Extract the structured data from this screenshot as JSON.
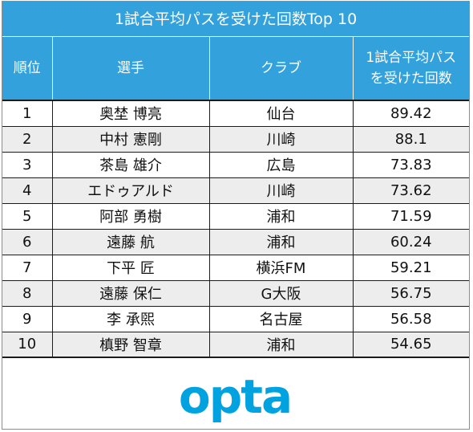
{
  "title": "1試合平均パスを受けた回数Top 10",
  "headers": {
    "rank": "順位",
    "player": "選手",
    "club": "クラブ",
    "value_line1": "1試合平均パス",
    "value_line2": "を受けた回数"
  },
  "rows": [
    {
      "rank": "1",
      "player": "奥埜 博亮",
      "club": "仙台",
      "value": "89.42"
    },
    {
      "rank": "2",
      "player": "中村 憲剛",
      "club": "川崎",
      "value": "88.1"
    },
    {
      "rank": "3",
      "player": "茶島 雄介",
      "club": "広島",
      "value": "73.83"
    },
    {
      "rank": "4",
      "player": "エドゥアルド",
      "club": "川崎",
      "value": "73.62"
    },
    {
      "rank": "5",
      "player": "阿部 勇樹",
      "club": "浦和",
      "value": "71.59"
    },
    {
      "rank": "6",
      "player": "遠藤 航",
      "club": "浦和",
      "value": "60.24"
    },
    {
      "rank": "7",
      "player": "下平 匠",
      "club": "横浜FM",
      "value": "59.21"
    },
    {
      "rank": "8",
      "player": "遠藤 保仁",
      "club": "G大阪",
      "value": "56.75"
    },
    {
      "rank": "9",
      "player": "李 承煕",
      "club": "名古屋",
      "value": "56.58"
    },
    {
      "rank": "10",
      "player": "槙野 智章",
      "club": "浦和",
      "value": "54.65"
    }
  ],
  "logo": {
    "text": "opta",
    "color": "#00a2e0"
  },
  "colors": {
    "header_bg": "#33a1dc",
    "header_text": "#ffffff",
    "alt_row_bg": "#ededed",
    "grid_line": "#1c1c1c"
  },
  "chart_data": {
    "type": "table",
    "title": "1試合平均パスを受けた回数Top 10",
    "columns": [
      "順位",
      "選手",
      "クラブ",
      "1試合平均パスを受けた回数"
    ],
    "rows": [
      [
        "1",
        "奥埜 博亮",
        "仙台",
        89.42
      ],
      [
        "2",
        "中村 憲剛",
        "川崎",
        88.1
      ],
      [
        "3",
        "茶島 雄介",
        "広島",
        73.83
      ],
      [
        "4",
        "エドゥアルド",
        "川崎",
        73.62
      ],
      [
        "5",
        "阿部 勇樹",
        "浦和",
        71.59
      ],
      [
        "6",
        "遠藤 航",
        "浦和",
        60.24
      ],
      [
        "7",
        "下平 匠",
        "横浜FM",
        59.21
      ],
      [
        "8",
        "遠藤 保仁",
        "G大阪",
        56.75
      ],
      [
        "9",
        "李 承煕",
        "名古屋",
        56.58
      ],
      [
        "10",
        "槙野 智章",
        "浦和",
        54.65
      ]
    ]
  }
}
